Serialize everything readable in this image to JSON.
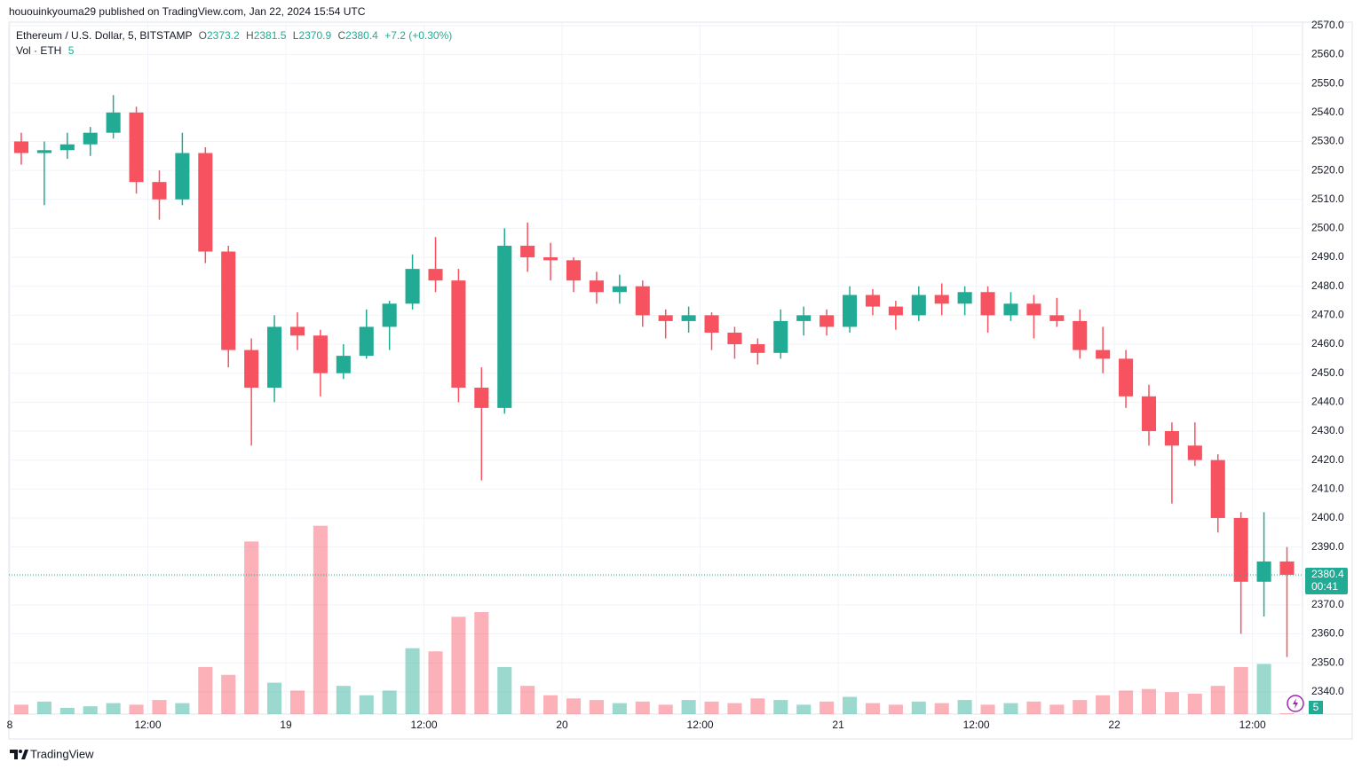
{
  "header": "hououinkyouma29 published on TradingView.com, Jan 22, 2024 15:54 UTC",
  "chart_data": {
    "type": "candlestick",
    "title": "Ethereum / U.S. Dollar, 5, BITSTAMP",
    "legend": {
      "open_label": "O",
      "open": 2373.2,
      "high_label": "H",
      "high": 2381.5,
      "low_label": "L",
      "low": 2370.9,
      "close_label": "C",
      "close": 2380.4,
      "change": "+7.2 (+0.30%)"
    },
    "volume_label": "Vol · ETH",
    "volume_last": 5,
    "x": [
      1,
      3,
      5,
      7,
      9,
      11,
      13,
      15,
      17,
      19,
      21,
      23,
      25,
      27,
      29,
      31,
      33,
      35,
      37,
      39,
      41,
      43,
      45,
      47,
      49,
      51,
      53,
      55,
      57,
      59,
      61,
      63,
      65,
      67,
      69,
      71,
      73,
      75,
      77,
      79,
      81,
      83,
      85,
      87,
      89,
      91,
      93,
      95,
      97,
      99,
      101,
      103,
      105,
      107,
      109,
      111
    ],
    "open": [
      2530,
      2526,
      2527,
      2529,
      2533,
      2540,
      2516,
      2510,
      2526,
      2492,
      2458,
      2445,
      2466,
      2463,
      2450,
      2456,
      2466,
      2474,
      2486,
      2482,
      2445,
      2438,
      2494,
      2490,
      2489,
      2482,
      2478,
      2480,
      2470,
      2468,
      2470,
      2464,
      2460,
      2457,
      2468,
      2470,
      2466,
      2477,
      2473,
      2470,
      2477,
      2474,
      2478,
      2470,
      2474,
      2470,
      2468,
      2458,
      2455,
      2442,
      2430,
      2425,
      2420,
      2400,
      2378,
      2385
    ],
    "high": [
      2533,
      2530,
      2533,
      2535,
      2546,
      2542,
      2520,
      2533,
      2528,
      2494,
      2462,
      2470,
      2471,
      2465,
      2460,
      2472,
      2475,
      2491,
      2497,
      2486,
      2452,
      2500,
      2502,
      2495,
      2490,
      2485,
      2484,
      2482,
      2472,
      2473,
      2471,
      2466,
      2462,
      2472,
      2473,
      2472,
      2480,
      2479,
      2475,
      2480,
      2481,
      2480,
      2480,
      2478,
      2477,
      2476,
      2472,
      2466,
      2458,
      2446,
      2433,
      2433,
      2422,
      2402,
      2402,
      2390
    ],
    "low": [
      2522,
      2508,
      2524,
      2525,
      2531,
      2512,
      2503,
      2508,
      2488,
      2452,
      2425,
      2440,
      2458,
      2442,
      2448,
      2455,
      2458,
      2472,
      2478,
      2440,
      2413,
      2436,
      2485,
      2482,
      2478,
      2474,
      2474,
      2466,
      2462,
      2464,
      2458,
      2455,
      2453,
      2455,
      2463,
      2463,
      2464,
      2470,
      2465,
      2468,
      2470,
      2470,
      2464,
      2468,
      2462,
      2466,
      2455,
      2450,
      2438,
      2425,
      2405,
      2418,
      2395,
      2360,
      2366,
      2352
    ],
    "close": [
      2526,
      2527,
      2529,
      2533,
      2540,
      2516,
      2510,
      2526,
      2492,
      2458,
      2445,
      2466,
      2463,
      2450,
      2456,
      2466,
      2474,
      2486,
      2482,
      2445,
      2438,
      2494,
      2490,
      2489,
      2482,
      2478,
      2480,
      2470,
      2468,
      2470,
      2464,
      2460,
      2457,
      2468,
      2470,
      2466,
      2477,
      2473,
      2470,
      2477,
      2474,
      2478,
      2470,
      2474,
      2470,
      2468,
      2458,
      2455,
      2442,
      2430,
      2425,
      2420,
      2400,
      2378,
      2385,
      2380.4
    ],
    "volume": [
      60,
      80,
      40,
      50,
      70,
      60,
      90,
      70,
      300,
      250,
      1100,
      200,
      150,
      1200,
      180,
      120,
      150,
      420,
      400,
      620,
      650,
      300,
      180,
      120,
      100,
      90,
      70,
      80,
      60,
      90,
      80,
      70,
      100,
      90,
      60,
      80,
      110,
      70,
      60,
      80,
      70,
      90,
      60,
      70,
      80,
      60,
      90,
      120,
      150,
      160,
      140,
      130,
      180,
      300,
      320,
      5
    ],
    "up_color": "#22ab94",
    "down_color": "#f7525f",
    "xlim": [
      0,
      112.35
    ],
    "xticks": [
      {
        "value": 0,
        "label": "8"
      },
      {
        "value": 12,
        "label": "12:00"
      },
      {
        "value": 24,
        "label": "19"
      },
      {
        "value": 36,
        "label": "12:00"
      },
      {
        "value": 48,
        "label": "20"
      },
      {
        "value": 60,
        "label": "12:00"
      },
      {
        "value": 72,
        "label": "21"
      },
      {
        "value": 84,
        "label": "12:00"
      },
      {
        "value": 96,
        "label": "22"
      },
      {
        "value": 108,
        "label": "12:00"
      }
    ],
    "ylim": [
      2332.3,
      2572.1
    ],
    "yticks": [
      {
        "value": 2340,
        "label": "2340.0"
      },
      {
        "value": 2350,
        "label": "2350.0"
      },
      {
        "value": 2360,
        "label": "2360.0"
      },
      {
        "value": 2370,
        "label": "2370.0"
      },
      {
        "value": 2380,
        "label": "2380.0"
      },
      {
        "value": 2390,
        "label": "2390.0"
      },
      {
        "value": 2400,
        "label": "2400.0"
      },
      {
        "value": 2410,
        "label": "2410.0"
      },
      {
        "value": 2420,
        "label": "2420.0"
      },
      {
        "value": 2430,
        "label": "2430.0"
      },
      {
        "value": 2440,
        "label": "2440.0"
      },
      {
        "value": 2450,
        "label": "2450.0"
      },
      {
        "value": 2460,
        "label": "2460.0"
      },
      {
        "value": 2470,
        "label": "2470.0"
      },
      {
        "value": 2480,
        "label": "2480.0"
      },
      {
        "value": 2490,
        "label": "2490.0"
      },
      {
        "value": 2500,
        "label": "2500.0"
      },
      {
        "value": 2510,
        "label": "2510.0"
      },
      {
        "value": 2520,
        "label": "2520.0"
      },
      {
        "value": 2530,
        "label": "2530.0"
      },
      {
        "value": 2540,
        "label": "2540.0"
      },
      {
        "value": 2550,
        "label": "2550.0"
      },
      {
        "value": 2560,
        "label": "2560.0"
      },
      {
        "value": 2570,
        "label": "2570.0"
      }
    ],
    "vlim": [
      0,
      1300
    ],
    "last_price": 2380.4,
    "countdown": "00:41",
    "grid": true
  },
  "footer": "TradingView"
}
